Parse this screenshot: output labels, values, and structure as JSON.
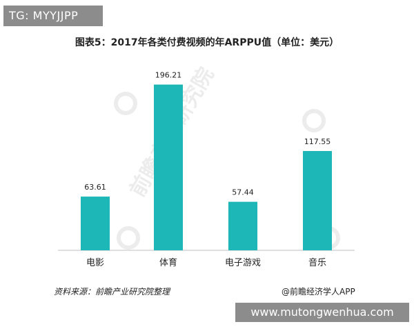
{
  "badge": {
    "top_left": "TG: MYYJJPP",
    "bottom_right": "www.mutongwenhua.com"
  },
  "footer": {
    "source": "资料来源：前瞻产业研究院整理",
    "credit": "@前瞻经济学人APP"
  },
  "watermark": {
    "brand": "前瞻产业研究院"
  },
  "colors": {
    "bar": "#1cb7b6",
    "axis": "#bfbfbf",
    "text": "#222222"
  },
  "chart_data": {
    "type": "bar",
    "title": "图表5：2017年各类付费视频的年ARPPU值（单位：美元）",
    "categories": [
      "电影",
      "体育",
      "电子游戏",
      "音乐"
    ],
    "values": [
      63.61,
      196.21,
      57.44,
      117.55
    ],
    "value_labels": [
      "63.61",
      "196.21",
      "57.44",
      "117.55"
    ],
    "ylim": [
      0,
      200
    ],
    "grid": false,
    "legend": "none"
  }
}
